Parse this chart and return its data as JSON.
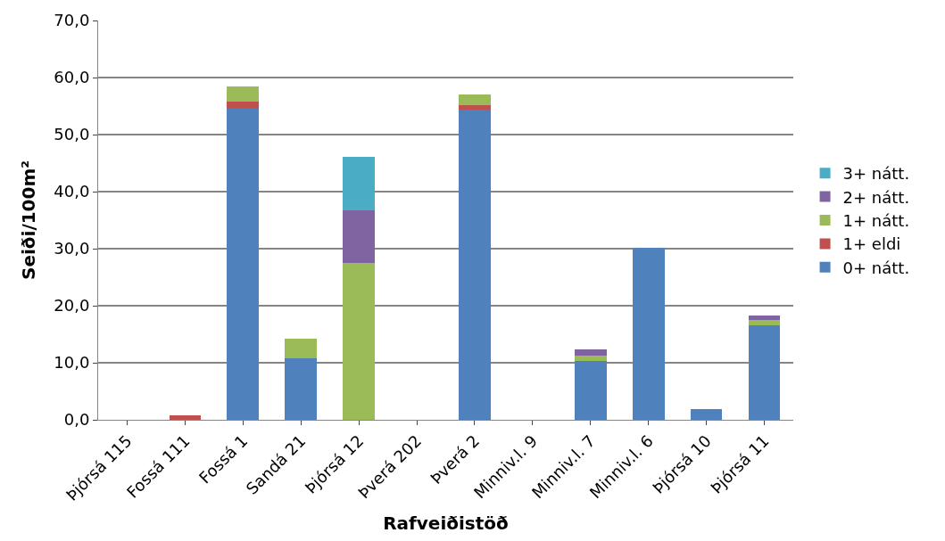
{
  "chart_data": {
    "type": "bar",
    "stacked": true,
    "xlabel": "Rafveiðistöð",
    "ylabel": "Seiði/100m²",
    "categories": [
      "Þjórsá 115",
      "Fossá 111",
      "Fossá 1",
      "Sandá 21",
      "Þjórsá 12",
      "Þverá 202",
      "Þverá 2",
      "Minniv.l. 9",
      "Minniv.l. 7",
      "Minniv.l. 6",
      "Þjórsá 10",
      "Þjórsá 11"
    ],
    "series": [
      {
        "name": "0+ nátt.",
        "color": "#4f81bd",
        "values": [
          0,
          0,
          54.5,
          10.8,
          0,
          0,
          54.4,
          0,
          10.3,
          30.2,
          1.8,
          16.5
        ]
      },
      {
        "name": "1+ eldi",
        "color": "#c0504d",
        "values": [
          0,
          0.8,
          1.3,
          0,
          0,
          0,
          0.8,
          0,
          0,
          0,
          0,
          0
        ]
      },
      {
        "name": "1+ nátt.",
        "color": "#9bbb59",
        "values": [
          0,
          0,
          2.6,
          3.4,
          27.5,
          0,
          1.9,
          0,
          1.0,
          0,
          0,
          1.0
        ]
      },
      {
        "name": "2+ nátt.",
        "color": "#8064a2",
        "values": [
          0,
          0,
          0,
          0,
          9.2,
          0,
          0,
          0,
          1.1,
          0,
          0,
          0.8
        ]
      },
      {
        "name": "3+ nátt.",
        "color": "#4bacc6",
        "values": [
          0,
          0,
          0,
          0,
          9.4,
          0,
          0,
          0,
          0,
          0,
          0,
          0
        ]
      }
    ],
    "ylim": [
      0,
      70
    ],
    "yticks": [
      {
        "value": 0,
        "label": "0,0"
      },
      {
        "value": 10,
        "label": "10,0"
      },
      {
        "value": 20,
        "label": "20,0"
      },
      {
        "value": 30,
        "label": "30,0"
      },
      {
        "value": 40,
        "label": "40,0"
      },
      {
        "value": 50,
        "label": "50,0"
      },
      {
        "value": 60,
        "label": "60,0"
      },
      {
        "value": 70,
        "label": "70,0"
      }
    ],
    "grid": "y",
    "legend": "right"
  }
}
